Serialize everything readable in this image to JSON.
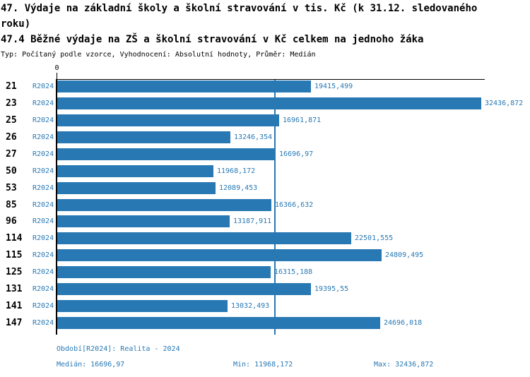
{
  "header": {
    "title1": "47. Výdaje na základní školy a školní stravování v tis. Kč (k 31.12. sledovaného roku)",
    "title2": "47.4 Běžné výdaje na ZŠ a školní stravování v Kč celkem na jednoho žáka",
    "subtitle": "Typ: Počítaný podle vzorce, Vyhodnocení: Absolutní hodnoty, Průměr: Medián"
  },
  "axis": {
    "zero_label": "0"
  },
  "rows": [
    {
      "category": "21",
      "series": "R2024",
      "value": 19415.499,
      "value_label": "19415,499"
    },
    {
      "category": "23",
      "series": "R2024",
      "value": 32436.872,
      "value_label": "32436,872"
    },
    {
      "category": "25",
      "series": "R2024",
      "value": 16961.871,
      "value_label": "16961,871"
    },
    {
      "category": "26",
      "series": "R2024",
      "value": 13246.354,
      "value_label": "13246,354"
    },
    {
      "category": "27",
      "series": "R2024",
      "value": 16696.97,
      "value_label": "16696,97"
    },
    {
      "category": "50",
      "series": "R2024",
      "value": 11968.172,
      "value_label": "11968,172"
    },
    {
      "category": "53",
      "series": "R2024",
      "value": 12089.453,
      "value_label": "12089,453"
    },
    {
      "category": "85",
      "series": "R2024",
      "value": 16366.632,
      "value_label": "16366,632"
    },
    {
      "category": "96",
      "series": "R2024",
      "value": 13187.911,
      "value_label": "13187,911"
    },
    {
      "category": "114",
      "series": "R2024",
      "value": 22501.555,
      "value_label": "22501,555"
    },
    {
      "category": "115",
      "series": "R2024",
      "value": 24809.495,
      "value_label": "24809,495"
    },
    {
      "category": "125",
      "series": "R2024",
      "value": 16315.188,
      "value_label": "16315,188"
    },
    {
      "category": "131",
      "series": "R2024",
      "value": 19395.55,
      "value_label": "19395,55"
    },
    {
      "category": "141",
      "series": "R2024",
      "value": 13032.493,
      "value_label": "13032,493"
    },
    {
      "category": "147",
      "series": "R2024",
      "value": 24696.018,
      "value_label": "24696,018"
    }
  ],
  "footer": {
    "period": "Období[R2024]: Realita - 2024",
    "median": "Medián: 16696,97",
    "min": "Min: 11968,172",
    "max": "Max: 32436,872"
  },
  "colors": {
    "bar": "#2878b4",
    "blue_text": "#2878b4",
    "axis": "#000000"
  },
  "chart_data": {
    "type": "bar",
    "orientation": "horizontal",
    "title": "47. Výdaje na základní školy a školní stravování v tis. Kč (k 31.12. sledovaného roku)",
    "subtitle": "47.4 Běžné výdaje na ZŠ a školní stravování v Kč celkem na jednoho žáka",
    "categories": [
      "21",
      "23",
      "25",
      "26",
      "27",
      "50",
      "53",
      "85",
      "96",
      "114",
      "115",
      "125",
      "131",
      "141",
      "147"
    ],
    "series": [
      {
        "name": "R2024",
        "values": [
          19415.499,
          32436.872,
          16961.871,
          13246.354,
          16696.97,
          11968.172,
          12089.453,
          16366.632,
          13187.911,
          22501.555,
          24809.495,
          16315.188,
          19395.55,
          13032.493,
          24696.018
        ]
      }
    ],
    "xlim": [
      0,
      32700
    ],
    "xlabel": "",
    "ylabel": "",
    "grid": false,
    "legend_position": "none",
    "median_reference_line": 16696.97,
    "stats": {
      "median": 16696.97,
      "min": 11968.172,
      "max": 32436.872
    }
  }
}
